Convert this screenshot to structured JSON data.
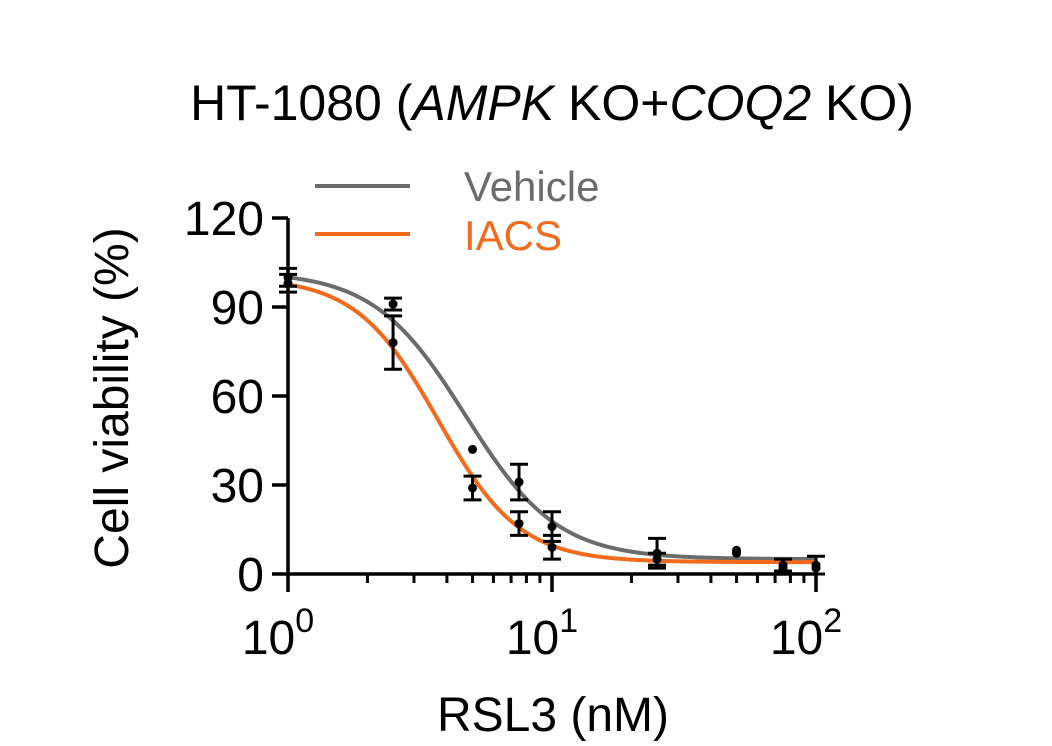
{
  "chart_data": {
    "type": "scatter",
    "title": {
      "prefix": "HT-1080 (",
      "gene1": "AMPK",
      "mid": " KO+",
      "gene2": "COQ2",
      "suffix": " KO)"
    },
    "xlabel": "RSL3 (nM)",
    "ylabel": "Cell viability (%)",
    "xscale": "log",
    "xlim": [
      1,
      100
    ],
    "ylim": [
      0,
      120
    ],
    "y_ticks": [
      "0",
      "30",
      "60",
      "90",
      "120"
    ],
    "x_ticks": [
      {
        "value": 1,
        "base": "10",
        "exp": "0"
      },
      {
        "value": 10,
        "base": "10",
        "exp": "1"
      },
      {
        "value": 100,
        "base": "10",
        "exp": "2"
      }
    ],
    "legend_position": "top",
    "series": [
      {
        "name": "Vehicle",
        "color": "#6b6b6b",
        "fit": {
          "top": 102,
          "bottom": 5,
          "ec50": 4.7,
          "hill": 2.5
        },
        "points": [
          {
            "x": 1,
            "y": 100,
            "err": 3
          },
          {
            "x": 2.5,
            "y": 91,
            "err": 2
          },
          {
            "x": 5,
            "y": 42,
            "err": 0
          },
          {
            "x": 7.5,
            "y": 31,
            "err": 6
          },
          {
            "x": 10,
            "y": 16,
            "err": 5
          },
          {
            "x": 25,
            "y": 7,
            "err": 5
          },
          {
            "x": 50,
            "y": 8,
            "err": 0
          },
          {
            "x": 75,
            "y": 3,
            "err": 2
          },
          {
            "x": 100,
            "y": 3,
            "err": 3
          }
        ]
      },
      {
        "name": "IACS",
        "color": "#f26b1d",
        "fit": {
          "top": 100,
          "bottom": 4,
          "ec50": 3.7,
          "hill": 2.8
        },
        "points": [
          {
            "x": 1,
            "y": 98,
            "err": 3
          },
          {
            "x": 2.5,
            "y": 78,
            "err": 9
          },
          {
            "x": 5,
            "y": 29,
            "err": 4
          },
          {
            "x": 7.5,
            "y": 17,
            "err": 4
          },
          {
            "x": 10,
            "y": 9,
            "err": 4
          },
          {
            "x": 25,
            "y": 5,
            "err": 2
          },
          {
            "x": 50,
            "y": 7,
            "err": 0
          },
          {
            "x": 75,
            "y": 2,
            "err": 0
          },
          {
            "x": 100,
            "y": 2,
            "err": 0
          }
        ]
      }
    ],
    "marker_color": "#000000"
  }
}
